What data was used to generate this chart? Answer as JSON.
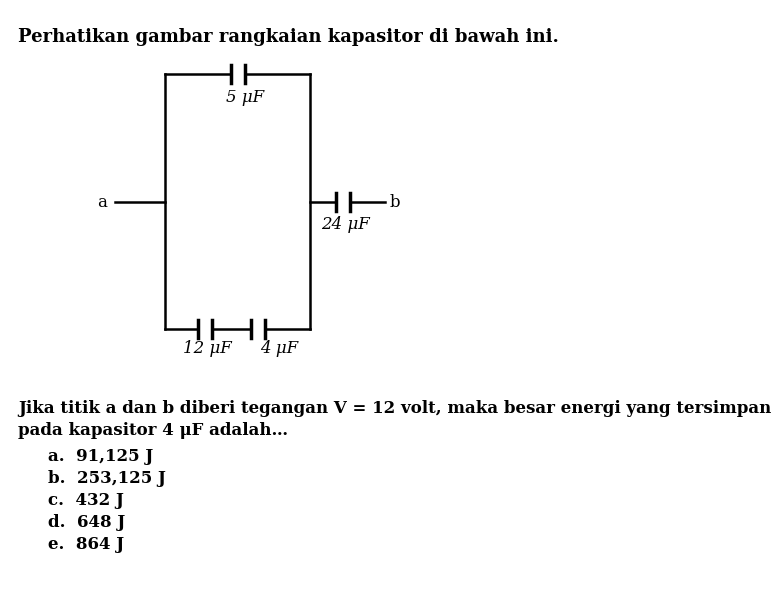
{
  "title": "Perhatikan gambar rangkaian kapasitor di bawah ini.",
  "title_fontsize": 13,
  "question_text1": "Jika titik a dan b diberi tegangan V = 12 volt, maka besar energi yang tersimpan",
  "question_text2": "pada kapasitor 4 μF adalah…",
  "options": [
    "a.  91,125 J",
    "b.  253,125 J",
    "c.  432 J",
    "d.  648 J",
    "e.  864 J"
  ],
  "cap_5_label": "5 μF",
  "cap_12_label": "12 μF",
  "cap_4_label": "4 μF",
  "cap_24_label": "24 μF",
  "label_a": "a",
  "label_b": "b",
  "line_color": "#000000",
  "bg_color": "#ffffff",
  "font_color": "#000000",
  "font_size": 12
}
